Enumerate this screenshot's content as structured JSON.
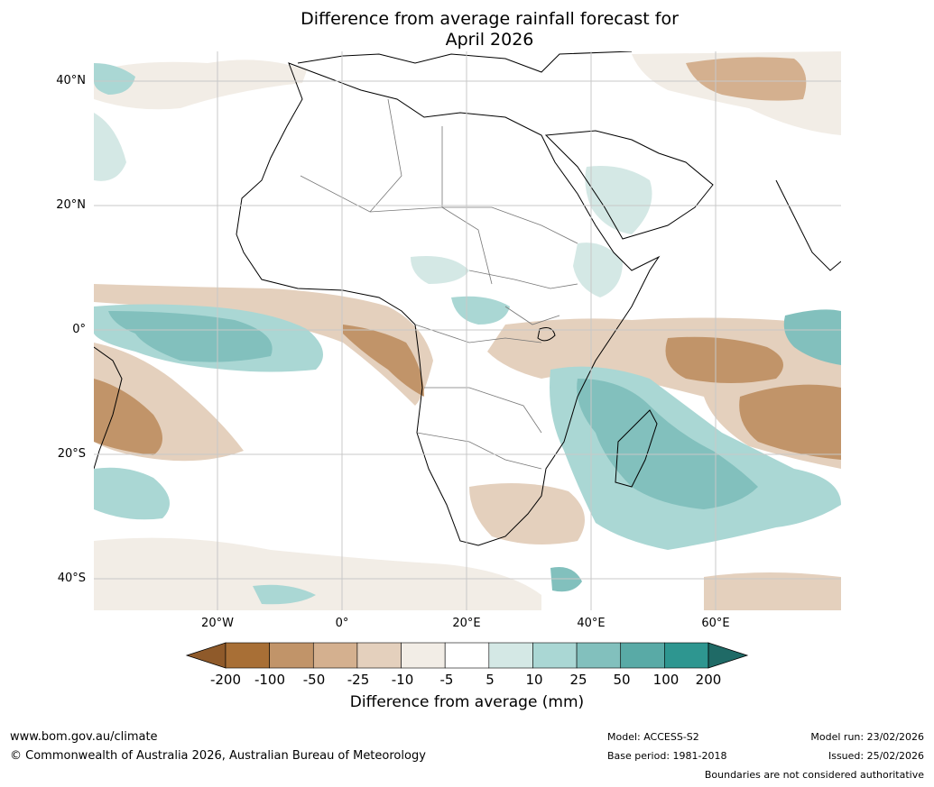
{
  "title_line1": "Difference from average rainfall forecast for",
  "title_line2": "April 2026",
  "map": {
    "lat_labels": [
      "40°N",
      "20°N",
      "0°",
      "20°S",
      "40°S"
    ],
    "lon_labels": [
      "20°W",
      "0°",
      "20°E",
      "40°E",
      "60°E"
    ]
  },
  "colorbar": {
    "ticks": [
      "-200",
      "-100",
      "-50",
      "-25",
      "-10",
      "-5",
      "5",
      "10",
      "25",
      "50",
      "100",
      "200"
    ],
    "title": "Difference from average (mm)",
    "colors": [
      "#a86f36",
      "#c19469",
      "#d4b08f",
      "#e4d0bd",
      "#f2ede6",
      "#ffffff",
      "#d4e8e5",
      "#aad7d4",
      "#82c0bd",
      "#59aaa6",
      "#2e9690",
      "#236f6c"
    ],
    "under_color": "#8f5a2a",
    "over_color": "#1f6a66"
  },
  "footer": {
    "website": "www.bom.gov.au/climate",
    "copyright": "© Commonwealth of Australia 2026, Australian Bureau of Meteorology",
    "model": "Model: ACCESS-S2",
    "base_period": "Base period: 1981-2018",
    "model_run": "Model run: 23/02/2026",
    "issued": "Issued: 25/02/2026",
    "boundaries": "Boundaries are not considered authoritative"
  }
}
